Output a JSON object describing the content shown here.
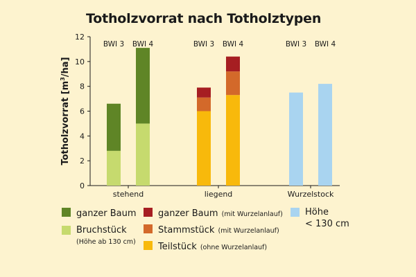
{
  "chart_data": {
    "type": "bar",
    "stacked": true,
    "title": "Totholzvorrat nach Totholztypen",
    "ylabel": {
      "main": "Totholzvorrat [m",
      "sup": "3",
      "unit": "/ha]"
    },
    "ylim": [
      0,
      12
    ],
    "yticks": [
      0,
      2,
      4,
      6,
      8,
      10,
      12
    ],
    "groups": [
      {
        "name": "stehend",
        "bars": [
          {
            "label": "BWI 3",
            "segments": [
              {
                "series": "Bruchstück",
                "value": 2.8
              },
              {
                "series": "ganzer Baum",
                "value": 3.8
              }
            ]
          },
          {
            "label": "BWI 4",
            "segments": [
              {
                "series": "Bruchstück",
                "value": 5.0
              },
              {
                "series": "ganzer Baum",
                "value": 6.1
              }
            ]
          }
        ]
      },
      {
        "name": "liegend",
        "bars": [
          {
            "label": "BWI 3",
            "segments": [
              {
                "series": "Teilstück",
                "value": 6.0
              },
              {
                "series": "Stammstück",
                "value": 1.1
              },
              {
                "series": "ganzer Baum (mit Wurzelanlauf)",
                "value": 0.8
              }
            ]
          },
          {
            "label": "BWI 4",
            "segments": [
              {
                "series": "Teilstück",
                "value": 7.3
              },
              {
                "series": "Stammstück",
                "value": 1.9
              },
              {
                "series": "ganzer Baum (mit Wurzelanlauf)",
                "value": 1.2
              }
            ]
          }
        ]
      },
      {
        "name": "Wurzelstock",
        "bars": [
          {
            "label": "BWI 3",
            "segments": [
              {
                "series": "Höhe < 130 cm",
                "value": 7.5
              }
            ]
          },
          {
            "label": "BWI 4",
            "segments": [
              {
                "series": "Höhe < 130 cm",
                "value": 8.2
              }
            ]
          }
        ]
      }
    ],
    "colors": {
      "ganzer Baum": "#5f8526",
      "Bruchstück": "#c6da6e",
      "ganzer Baum (mit Wurzelanlauf)": "#a61e22",
      "Stammstück": "#d3692a",
      "Teilstück": "#f8b90b",
      "Höhe < 130 cm": "#a9d4f0"
    },
    "legend": [
      {
        "key": "ganzer Baum",
        "main": "ganzer Baum",
        "sub": ""
      },
      {
        "key": "Bruchstück",
        "main": "Bruchstück",
        "sub": "(Höhe ab 130 cm)"
      },
      {
        "key": "ganzer Baum (mit Wurzelanlauf)",
        "main": "ganzer Baum",
        "sub": "(mit Wurzelanlauf)"
      },
      {
        "key": "Stammstück",
        "main": "Stammstück",
        "sub": "(mit Wurzelanlauf)"
      },
      {
        "key": "Teilstück",
        "main": "Teilstück",
        "sub": "(ohne Wurzelanlauf)"
      },
      {
        "key": "Höhe < 130 cm",
        "main": "Höhe",
        "sub": "< 130 cm"
      }
    ]
  }
}
